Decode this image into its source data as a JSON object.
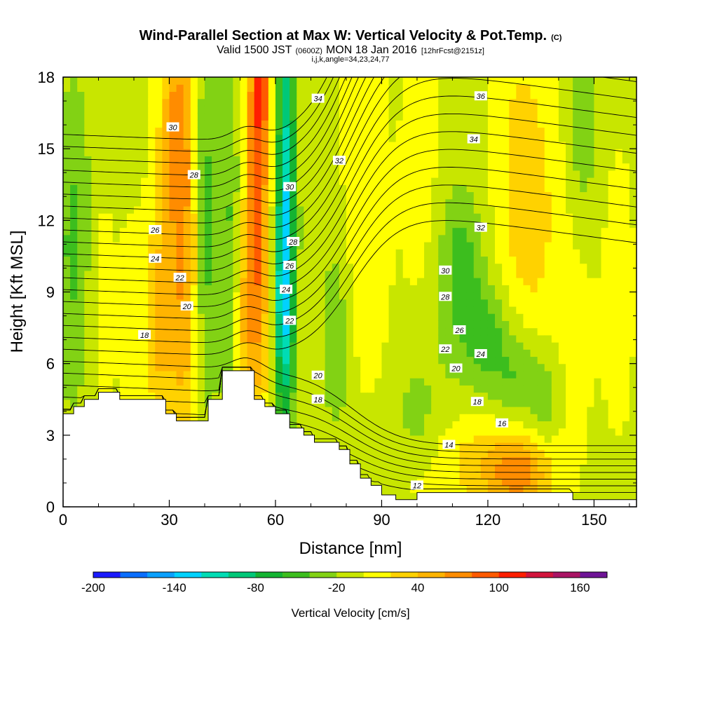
{
  "chart_data": {
    "type": "heatmap",
    "title": "Wind-Parallel Section at Max W: Vertical Velocity & Pot.Temp.",
    "title_unit": "(C)",
    "subtitle_parts": {
      "valid_pre": "Valid 1500 JST",
      "zulu": "(0600Z)",
      "date": "MON 18 Jan 2016",
      "forecast": "[12hrFcst@2151z]"
    },
    "subtitle2": "i,j,k,angle=34,23,24,77",
    "xlabel": "Distance [nm]",
    "ylabel": "Height [Kft MSL]",
    "xlim": [
      0,
      162
    ],
    "ylim": [
      0,
      18
    ],
    "x_ticks": [
      0,
      30,
      60,
      90,
      120,
      150
    ],
    "x_tick_labels": [
      "0",
      "30",
      "60",
      "90",
      "120",
      "150"
    ],
    "y_ticks": [
      0,
      3,
      6,
      9,
      12,
      15,
      18
    ],
    "y_tick_labels": [
      "0",
      "3",
      "6",
      "9",
      "12",
      "15",
      "18"
    ],
    "colorbar": {
      "label": "Vertical Velocity [cm/s]",
      "tick_labels": [
        "-200",
        "-140",
        "-80",
        "-20",
        "40",
        "100",
        "160"
      ],
      "tick_values": [
        -200,
        -140,
        -80,
        -20,
        40,
        100,
        160
      ],
      "min": -200,
      "max": 180,
      "step": 20,
      "colors": [
        "#1a1aff",
        "#0a6eff",
        "#0aa0ff",
        "#00d2ff",
        "#00dcb4",
        "#00c878",
        "#14b432",
        "#3cbe1e",
        "#82d214",
        "#c8e600",
        "#ffff00",
        "#ffd200",
        "#ffb400",
        "#ff8c00",
        "#ff5a00",
        "#ff1e00",
        "#d2143c",
        "#aa1464",
        "#6e1496"
      ]
    },
    "terrain": {
      "x": [
        0,
        3,
        3,
        6,
        6,
        10,
        10,
        16,
        16,
        29,
        29,
        32,
        32,
        41,
        41,
        45,
        45,
        54,
        54,
        57,
        57,
        60,
        60,
        64,
        64,
        68,
        68,
        71,
        71,
        78,
        78,
        81,
        81,
        84,
        84,
        87,
        87,
        90,
        90,
        94,
        94,
        100,
        100,
        144,
        144,
        150,
        150,
        162
      ],
      "y": [
        3.9,
        3.9,
        4.2,
        4.2,
        4.5,
        4.5,
        4.8,
        4.8,
        4.5,
        4.5,
        3.9,
        3.9,
        3.6,
        3.6,
        4.5,
        4.5,
        5.7,
        5.7,
        4.5,
        4.5,
        4.2,
        4.2,
        3.9,
        3.9,
        3.3,
        3.3,
        3.0,
        3.0,
        2.7,
        2.7,
        2.4,
        2.4,
        1.8,
        1.8,
        1.2,
        1.2,
        0.9,
        0.9,
        0.5,
        0.5,
        0.3,
        0.3,
        0.6,
        0.6,
        0.3,
        0.3,
        0.3,
        0.3
      ]
    },
    "w_field": {
      "background": -5,
      "features": [
        {
          "x": 34,
          "z": 11,
          "sx": 3.5,
          "sz": 6.5,
          "w": 70
        },
        {
          "x": 31,
          "z": 16,
          "sx": 3,
          "sz": 2.5,
          "w": 40
        },
        {
          "x": 27,
          "z": 8,
          "sx": 2.5,
          "sz": 3,
          "w": 50
        },
        {
          "x": 55,
          "z": 13,
          "sx": 2.5,
          "sz": 6,
          "w": 90
        },
        {
          "x": 56,
          "z": 17.5,
          "sx": 2,
          "sz": 1.5,
          "w": 50
        },
        {
          "x": 51,
          "z": 8,
          "sx": 2.5,
          "sz": 3,
          "w": 40
        },
        {
          "x": 63,
          "z": 13,
          "sx": 2,
          "sz": 6,
          "w": -105
        },
        {
          "x": 62,
          "z": 8,
          "sx": 2,
          "sz": 3,
          "w": -60
        },
        {
          "x": 40,
          "z": 12,
          "sx": 2.5,
          "sz": 6,
          "w": -50
        },
        {
          "x": 47,
          "z": 11,
          "sx": 2.5,
          "sz": 5,
          "w": -40
        },
        {
          "x": 3,
          "z": 11,
          "sx": 4,
          "sz": 5,
          "w": -40
        },
        {
          "x": 10,
          "z": 9,
          "sx": 3,
          "sz": 4,
          "w": 15
        },
        {
          "x": 20,
          "z": 8,
          "sx": 3,
          "sz": 3,
          "w": 15
        },
        {
          "x": 130,
          "z": 15,
          "sx": 6,
          "sz": 4,
          "w": 30
        },
        {
          "x": 132,
          "z": 11,
          "sx": 5,
          "sz": 3,
          "w": 20
        },
        {
          "x": 144,
          "z": 8,
          "sx": 5,
          "sz": 4,
          "w": 12
        },
        {
          "x": 112,
          "z": 9,
          "sx": 5,
          "sz": 3,
          "w": -30
        },
        {
          "x": 120,
          "z": 7,
          "sx": 4,
          "sz": 1.5,
          "w": -40
        },
        {
          "x": 128,
          "z": 5.5,
          "sx": 4,
          "sz": 1.5,
          "w": -35
        },
        {
          "x": 136,
          "z": 4.5,
          "sx": 3,
          "sz": 1.5,
          "w": -30
        },
        {
          "x": 113,
          "z": 10.5,
          "sx": 4,
          "sz": 2,
          "w": -20
        },
        {
          "x": 147,
          "z": 16,
          "sx": 3,
          "sz": 3,
          "w": -30
        },
        {
          "x": 77,
          "z": 7,
          "sx": 3,
          "sz": 3,
          "w": -30
        },
        {
          "x": 128,
          "z": 1.5,
          "sx": 7,
          "sz": 1.2,
          "w": 80
        },
        {
          "x": 113,
          "z": 2,
          "sx": 6,
          "sz": 1.5,
          "w": 25
        },
        {
          "x": 100,
          "z": 1,
          "sx": 4,
          "sz": 0.8,
          "w": 10
        },
        {
          "x": 100,
          "z": 4,
          "sx": 5,
          "sz": 2,
          "w": -20
        },
        {
          "x": 85,
          "z": 15,
          "sx": 4,
          "sz": 4,
          "w": 20
        },
        {
          "x": 101,
          "z": 14,
          "sx": 4,
          "sz": 4,
          "w": 15
        },
        {
          "x": 157,
          "z": 9,
          "sx": 3,
          "sz": 4,
          "w": 15
        },
        {
          "x": 86,
          "z": 9,
          "sx": 4,
          "sz": 3,
          "w": 15
        }
      ]
    },
    "theta_contours": {
      "levels": [
        12,
        13,
        14,
        15,
        16,
        17,
        18,
        19,
        20,
        21,
        22,
        23,
        24,
        25,
        26,
        27,
        28,
        29,
        30,
        31,
        32,
        33,
        34,
        35,
        36,
        37,
        38
      ],
      "z0_west": 2.6,
      "z0_east_low": 0.6,
      "z0_east_high": 5.3,
      "dz_west": 0.5,
      "dz_east_low": 0.28,
      "dz_east_high": 0.75
    },
    "contour_labels": [
      {
        "text": "30",
        "x": 31,
        "z": 15.9
      },
      {
        "text": "28",
        "x": 37,
        "z": 13.9
      },
      {
        "text": "26",
        "x": 26,
        "z": 11.6
      },
      {
        "text": "24",
        "x": 26,
        "z": 10.4
      },
      {
        "text": "22",
        "x": 33,
        "z": 9.6
      },
      {
        "text": "20",
        "x": 35,
        "z": 8.4
      },
      {
        "text": "18",
        "x": 23,
        "z": 7.2
      },
      {
        "text": "34",
        "x": 72,
        "z": 17.1
      },
      {
        "text": "32",
        "x": 78,
        "z": 14.5
      },
      {
        "text": "30",
        "x": 64,
        "z": 13.4
      },
      {
        "text": "28",
        "x": 65,
        "z": 11.1
      },
      {
        "text": "26",
        "x": 64,
        "z": 10.1
      },
      {
        "text": "24",
        "x": 63,
        "z": 9.1
      },
      {
        "text": "22",
        "x": 64,
        "z": 7.8
      },
      {
        "text": "20",
        "x": 72,
        "z": 5.5
      },
      {
        "text": "18",
        "x": 72,
        "z": 4.5
      },
      {
        "text": "36",
        "x": 118,
        "z": 17.2
      },
      {
        "text": "34",
        "x": 116,
        "z": 15.4
      },
      {
        "text": "32",
        "x": 118,
        "z": 11.7
      },
      {
        "text": "30",
        "x": 108,
        "z": 9.9
      },
      {
        "text": "28",
        "x": 108,
        "z": 8.8
      },
      {
        "text": "26",
        "x": 112,
        "z": 7.4
      },
      {
        "text": "24",
        "x": 118,
        "z": 6.4
      },
      {
        "text": "22",
        "x": 108,
        "z": 6.6
      },
      {
        "text": "20",
        "x": 111,
        "z": 5.8
      },
      {
        "text": "18",
        "x": 117,
        "z": 4.4
      },
      {
        "text": "16",
        "x": 124,
        "z": 3.5
      },
      {
        "text": "14",
        "x": 109,
        "z": 2.6
      },
      {
        "text": "12",
        "x": 100,
        "z": 0.9
      }
    ]
  }
}
